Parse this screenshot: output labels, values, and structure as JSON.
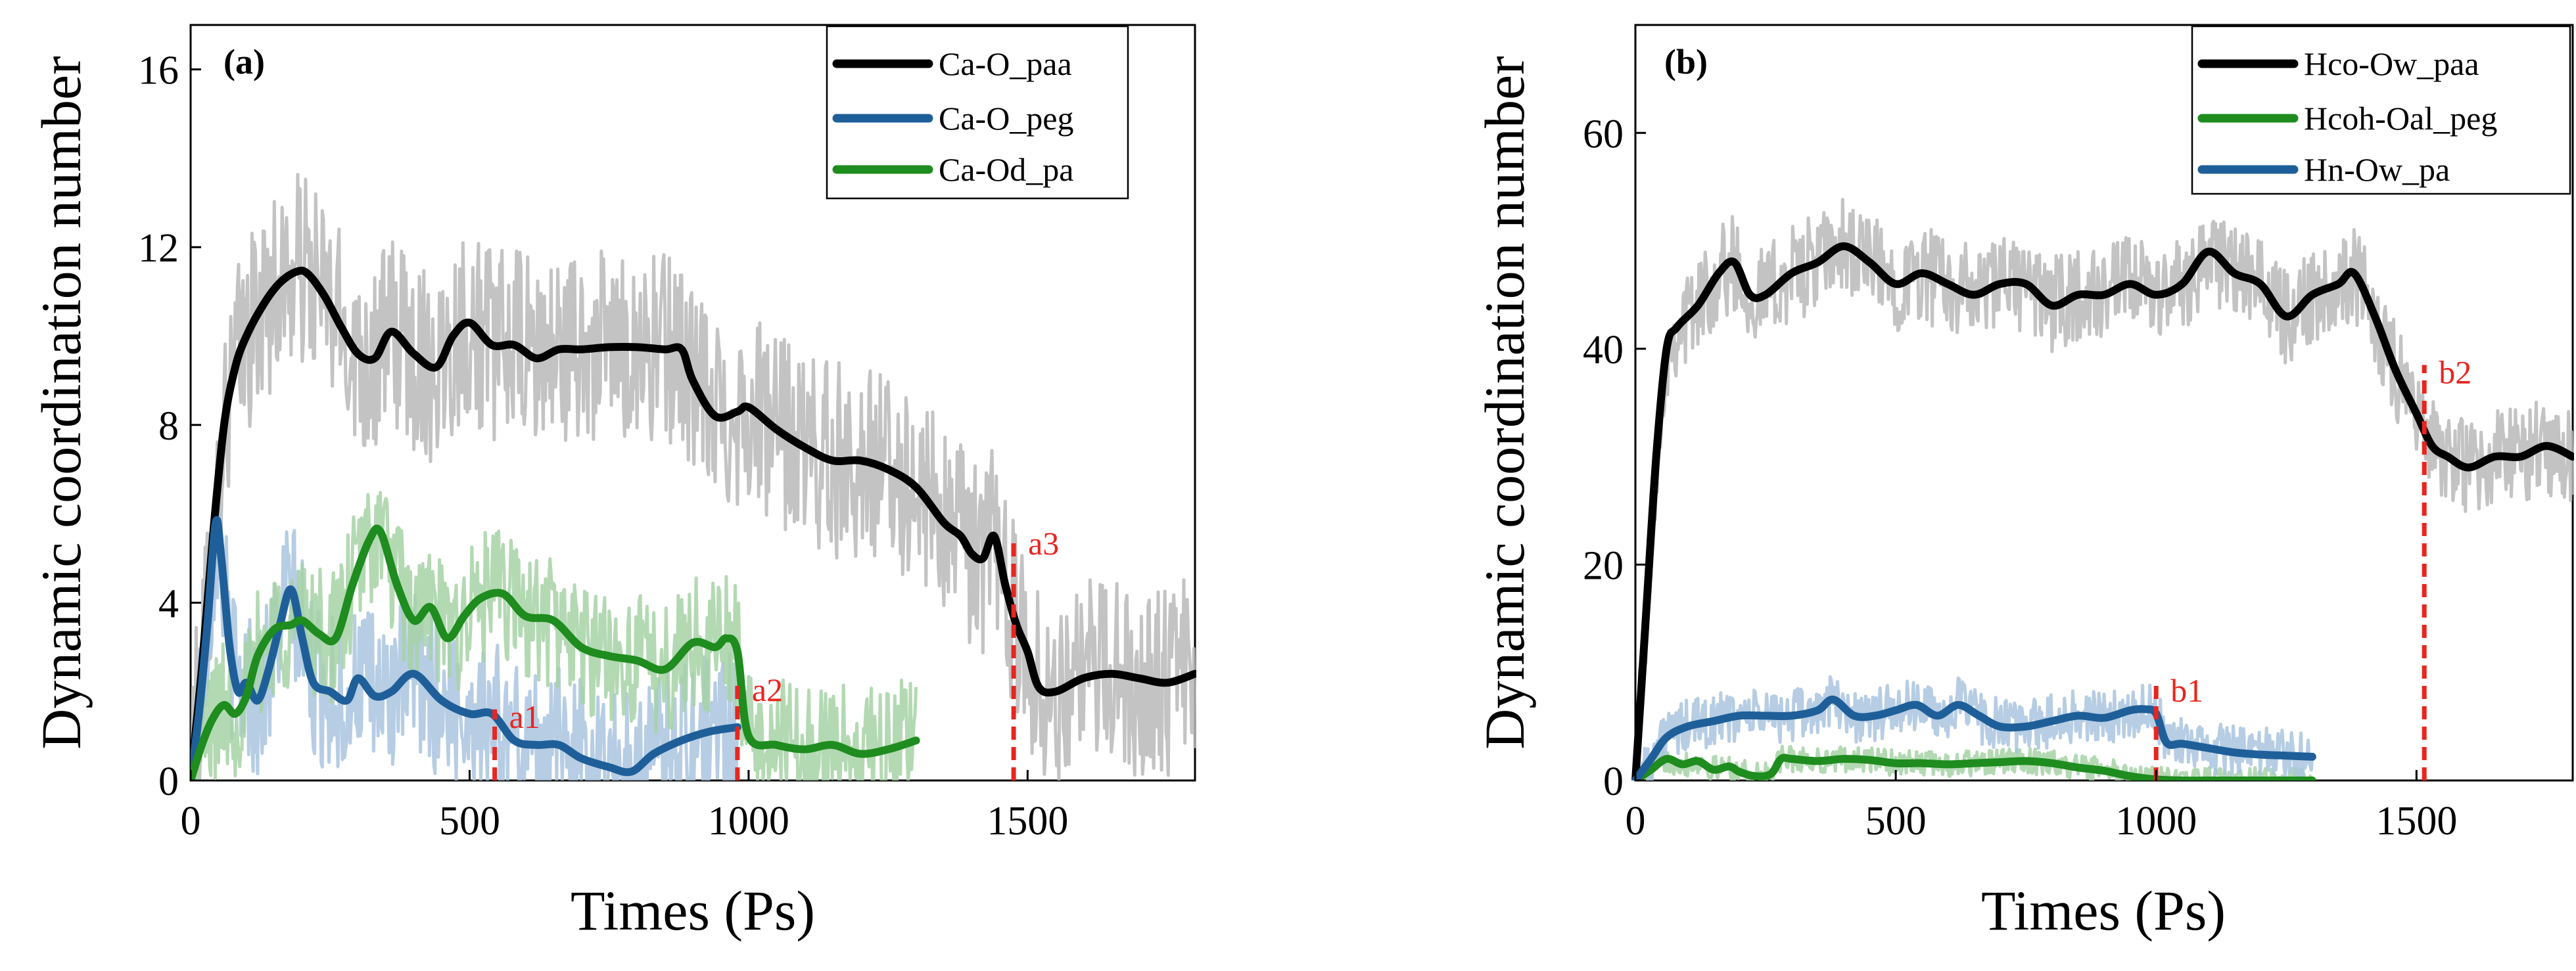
{
  "chart_data": [
    {
      "panel_label": "(a)",
      "type": "line",
      "xlabel": "Times (Ps)",
      "ylabel": "Dynamic coordination number",
      "xlim": [
        0,
        1800
      ],
      "ylim": [
        0,
        17
      ],
      "xticks": [
        0,
        500,
        1000,
        1500
      ],
      "xtick_labels": [
        "0",
        "500",
        "1000",
        "1500"
      ],
      "yticks": [
        0,
        4,
        8,
        12,
        16
      ],
      "ytick_labels": [
        "0",
        "4",
        "8",
        "12",
        "16"
      ],
      "legend_position": "top-right",
      "series": [
        {
          "name": "Ca-O_paa",
          "color": "#000000",
          "raw_color": "#b8b8b8",
          "raw_spread": 2.2,
          "x": [
            0,
            20,
            40,
            60,
            80,
            100,
            130,
            160,
            190,
            210,
            240,
            270,
            300,
            330,
            360,
            400,
            440,
            470,
            500,
            540,
            580,
            620,
            660,
            700,
            750,
            800,
            850,
            880,
            900,
            940,
            980,
            1000,
            1050,
            1100,
            1150,
            1200,
            1250,
            1300,
            1350,
            1380,
            1400,
            1420,
            1440,
            1460,
            1480,
            1500,
            1520,
            1550,
            1600,
            1650,
            1700,
            1750,
            1800
          ],
          "y": [
            0,
            2.5,
            5.5,
            8,
            9.3,
            10.0,
            10.7,
            11.2,
            11.45,
            11.4,
            10.9,
            10.2,
            9.6,
            9.5,
            10.1,
            9.6,
            9.3,
            10.0,
            10.3,
            9.8,
            9.8,
            9.5,
            9.7,
            9.7,
            9.75,
            9.75,
            9.7,
            9.7,
            9.0,
            8.2,
            8.3,
            8.4,
            7.9,
            7.5,
            7.2,
            7.2,
            7.0,
            6.6,
            5.8,
            5.5,
            5.1,
            5.0,
            5.5,
            4.4,
            3.5,
            2.9,
            2.1,
            2.0,
            2.3,
            2.4,
            2.3,
            2.2,
            2.4
          ]
        },
        {
          "name": "Ca-O_peg",
          "color": "#1f5f99",
          "raw_color": "#a9c4df",
          "raw_spread": 1.8,
          "x": [
            0,
            15,
            30,
            45,
            55,
            70,
            85,
            100,
            120,
            140,
            160,
            180,
            200,
            220,
            250,
            280,
            300,
            330,
            360,
            400,
            450,
            500,
            540,
            580,
            620,
            660,
            700,
            750,
            790,
            830,
            880,
            930,
            980
          ],
          "y": [
            0,
            1.5,
            3.5,
            5.8,
            5.0,
            3.0,
            2.0,
            2.2,
            1.8,
            2.5,
            3.5,
            4.3,
            3.2,
            2.2,
            2.0,
            1.8,
            2.3,
            1.9,
            2.0,
            2.4,
            1.8,
            1.5,
            1.5,
            0.9,
            0.8,
            0.8,
            0.5,
            0.3,
            0.2,
            0.6,
            0.9,
            1.1,
            1.2
          ]
        },
        {
          "name": "Ca-Od_pa",
          "color": "#1e8c1e",
          "raw_color": "#a6d2a6",
          "raw_spread": 1.5,
          "x": [
            0,
            20,
            40,
            60,
            80,
            100,
            120,
            150,
            180,
            200,
            230,
            260,
            290,
            320,
            340,
            370,
            400,
            430,
            460,
            490,
            520,
            560,
            600,
            650,
            700,
            750,
            800,
            850,
            900,
            940,
            960,
            980,
            1000,
            1050,
            1100,
            1150,
            1200,
            1250,
            1300
          ],
          "y": [
            0,
            0.8,
            1.4,
            1.7,
            1.5,
            1.9,
            2.8,
            3.4,
            3.5,
            3.6,
            3.3,
            3.2,
            4.4,
            5.4,
            5.6,
            4.4,
            3.6,
            3.9,
            3.2,
            3.7,
            4.1,
            4.2,
            3.7,
            3.6,
            3.0,
            2.8,
            2.7,
            2.5,
            3.1,
            3.0,
            3.2,
            2.9,
            1.0,
            0.8,
            0.7,
            0.8,
            0.6,
            0.7,
            0.9
          ]
        }
      ],
      "markers": [
        {
          "label": "a1",
          "x": 545,
          "y_top": 1.6
        },
        {
          "label": "a2",
          "x": 980,
          "y_top": 2.2
        },
        {
          "label": "a3",
          "x": 1475,
          "y_top": 5.5
        }
      ]
    },
    {
      "panel_label": "(b)",
      "type": "line",
      "xlabel": "Times (Ps)",
      "ylabel": "Dynamic coordination number",
      "xlim": [
        0,
        1800
      ],
      "ylim": [
        0,
        70
      ],
      "xticks": [
        0,
        500,
        1000,
        1500
      ],
      "xtick_labels": [
        "0",
        "500",
        "1000",
        "1500"
      ],
      "yticks": [
        0,
        20,
        40,
        60
      ],
      "ytick_labels": [
        "0",
        "20",
        "40",
        "60"
      ],
      "legend_position": "top-right",
      "series": [
        {
          "name": "Hco-Ow_paa",
          "color": "#000000",
          "raw_color": "#b8b8b8",
          "raw_spread": 4.5,
          "x": [
            0,
            20,
            40,
            60,
            80,
            120,
            160,
            190,
            220,
            250,
            300,
            350,
            400,
            450,
            500,
            550,
            600,
            650,
            700,
            750,
            800,
            850,
            900,
            950,
            1000,
            1050,
            1100,
            1150,
            1200,
            1250,
            1300,
            1350,
            1380,
            1420,
            1460,
            1500,
            1530,
            1560,
            1600,
            1650,
            1700,
            1750,
            1800
          ],
          "y": [
            0,
            15,
            30,
            40,
            42,
            44,
            47,
            48,
            45,
            45,
            47,
            48,
            49.5,
            48,
            46,
            47,
            46,
            45,
            46,
            46,
            44,
            45,
            45,
            46,
            45,
            46,
            49,
            47,
            46,
            43,
            45,
            46,
            47,
            43,
            38,
            34,
            31,
            30,
            29,
            30,
            30,
            31,
            30
          ]
        },
        {
          "name": "Hcoh-Oal_peg",
          "color": "#1e8c1e",
          "raw_color": "#a6d2a6",
          "raw_spread": 1.2,
          "x": [
            0,
            30,
            60,
            90,
            120,
            150,
            180,
            200,
            230,
            260,
            280,
            300,
            350,
            400,
            450,
            500,
            550,
            600,
            650,
            700,
            750,
            800,
            850,
            900,
            950,
            1000,
            1050,
            1100,
            1150,
            1200,
            1250,
            1300
          ],
          "y": [
            0,
            1,
            2,
            1.5,
            1.8,
            1.0,
            1.3,
            0.8,
            0.4,
            0.6,
            2.0,
            2.0,
            1.8,
            2.0,
            1.9,
            1.6,
            1.6,
            1.5,
            1.6,
            1.7,
            1.8,
            1.6,
            1.2,
            0.9,
            0.4,
            0.1,
            0.0,
            0.0,
            0.0,
            0.0,
            0.0,
            0.0
          ]
        },
        {
          "name": "Hn-Ow_pa",
          "color": "#1f5f99",
          "raw_color": "#a9c4df",
          "raw_spread": 2.5,
          "x": [
            0,
            30,
            60,
            100,
            150,
            200,
            250,
            300,
            350,
            380,
            420,
            460,
            500,
            540,
            580,
            620,
            660,
            700,
            750,
            800,
            850,
            900,
            950,
            980,
            1000,
            1020,
            1050,
            1100,
            1150,
            1200,
            1250,
            1300
          ],
          "y": [
            0,
            2,
            4,
            5,
            5.5,
            6,
            6,
            6,
            6.5,
            7.5,
            6,
            6,
            6.5,
            7,
            6,
            7,
            6,
            5,
            5,
            5.5,
            6,
            5.8,
            6.5,
            6.6,
            6.2,
            3.5,
            3.4,
            3.0,
            2.6,
            2.4,
            2.3,
            2.2
          ]
        }
      ],
      "markers": [
        {
          "label": "b1",
          "x": 1000,
          "y_top": 9.0
        },
        {
          "label": "b2",
          "x": 1515,
          "y_top": 38.5
        }
      ]
    }
  ]
}
